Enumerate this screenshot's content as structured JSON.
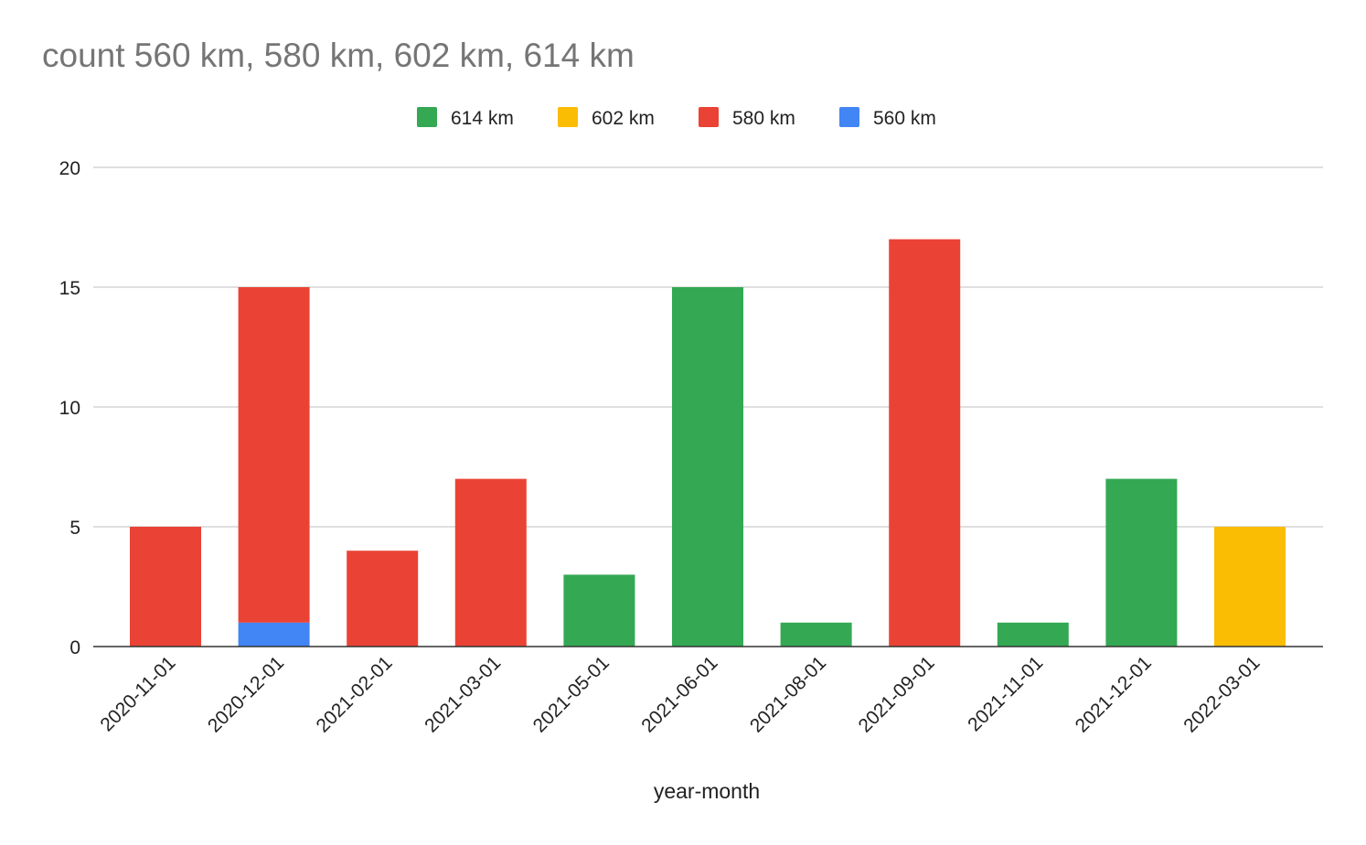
{
  "chart_data": {
    "type": "bar",
    "stacked": true,
    "title": "count 560 km, 580 km, 602 km, 614 km",
    "xlabel": "year-month",
    "ylabel": "",
    "ylim": [
      0,
      20
    ],
    "yticks": [
      0,
      5,
      10,
      15,
      20
    ],
    "grid": true,
    "legend_position": "top",
    "categories": [
      "2020-11-01",
      "2020-12-01",
      "2021-02-01",
      "2021-03-01",
      "2021-05-01",
      "2021-06-01",
      "2021-08-01",
      "2021-09-01",
      "2021-11-01",
      "2021-12-01",
      "2022-03-01"
    ],
    "series": [
      {
        "name": "560 km",
        "color": "#4285f4",
        "values": [
          0,
          1,
          0,
          0,
          0,
          0,
          0,
          0,
          0,
          0,
          0
        ]
      },
      {
        "name": "580 km",
        "color": "#ea4335",
        "values": [
          5,
          14,
          4,
          7,
          0,
          0,
          0,
          17,
          0,
          0,
          0
        ]
      },
      {
        "name": "602 km",
        "color": "#fbbc04",
        "values": [
          0,
          0,
          0,
          0,
          0,
          0,
          0,
          0,
          0,
          0,
          5
        ]
      },
      {
        "name": "614 km",
        "color": "#34a853",
        "values": [
          0,
          0,
          0,
          0,
          3,
          15,
          1,
          0,
          1,
          7,
          0
        ]
      }
    ],
    "legend_order": [
      "614 km",
      "602 km",
      "580 km",
      "560 km"
    ]
  }
}
